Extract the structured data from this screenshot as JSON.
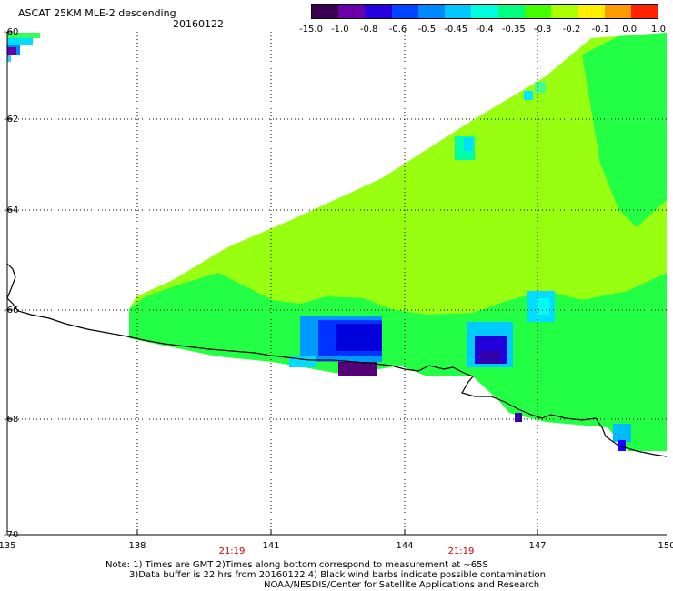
{
  "header": {
    "title": "ASCAT 25KM MLE-2 descending",
    "date": "20160122"
  },
  "colorbar": {
    "labels": [
      "-15.0",
      "-1.0",
      "-0.8",
      "-0.6",
      "-0.5",
      "-0.45",
      "-0.4",
      "-0.35",
      "-0.3",
      "-0.2",
      "-0.1",
      "0.0",
      "1.0"
    ],
    "colors": [
      "#3a0050",
      "#6a00a8",
      "#2600e0",
      "#0044ff",
      "#0088ff",
      "#00c8ff",
      "#00ffdd",
      "#00ff80",
      "#44ff00",
      "#aaff00",
      "#ffee00",
      "#ff9900",
      "#ff2200"
    ]
  },
  "axes": {
    "lat_labels": [
      "-60",
      "-62",
      "-64",
      "-66",
      "-68",
      "-70"
    ],
    "lon_labels": [
      "135",
      "138",
      "141",
      "144",
      "147",
      "150"
    ]
  },
  "pass_times": [
    "21:19",
    "21:19"
  ],
  "notes": [
    "Note: 1) Times are GMT 2)Times along bottom correspond to measurement at ~65S",
    "3)Data buffer is 22 hrs from 20160122 4) Black wind barbs indicate possible contamination",
    "NOAA/NESDIS/Center for Satellite Applications and Research"
  ],
  "palette": {
    "background_field": "#99ff11",
    "swath_green": "#22ff44",
    "coast": "#000000",
    "grid": "#000000"
  }
}
